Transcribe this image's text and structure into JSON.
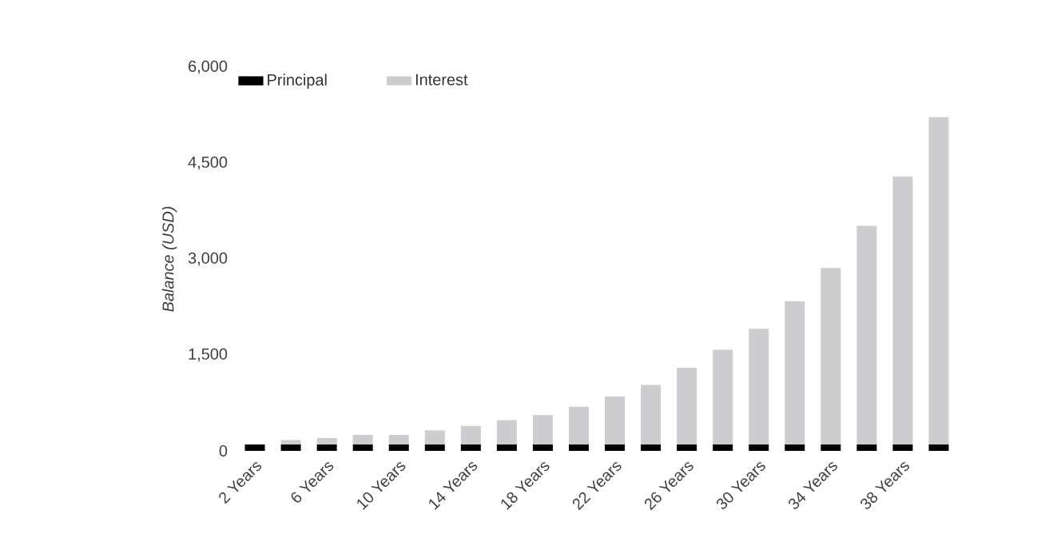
{
  "chart_data": {
    "type": "bar",
    "stacked": true,
    "ylabel": "Balance (USD)",
    "categories": [
      "2 Years",
      null,
      "6 Years",
      null,
      "10 Years",
      null,
      "14 Years",
      null,
      "18 Years",
      null,
      "22 Years",
      null,
      "26 Years",
      null,
      "30 Years",
      null,
      "34 Years",
      null,
      "38 Years",
      null
    ],
    "series": [
      {
        "name": "Principal",
        "color": "#000000",
        "values": [
          100,
          100,
          100,
          100,
          100,
          100,
          100,
          100,
          100,
          100,
          100,
          100,
          100,
          100,
          100,
          100,
          100,
          100,
          100,
          100
        ]
      },
      {
        "name": "Interest",
        "color": "#cdcdcf",
        "values": [
          null,
          70,
          100,
          150,
          150,
          220,
          290,
          380,
          460,
          590,
          750,
          930,
          1200,
          1480,
          1810,
          2240,
          2760,
          3420,
          4190,
          5120
        ]
      }
    ],
    "ylim": [
      0,
      6000
    ],
    "yticks": [
      {
        "value": 0,
        "label": "0"
      },
      {
        "value": 1500,
        "label": "1,500"
      },
      {
        "value": 3000,
        "label": "3,000"
      },
      {
        "value": 4500,
        "label": "4,500"
      },
      {
        "value": 6000,
        "label": "6,000"
      }
    ],
    "legend": "top left",
    "grid": false
  }
}
